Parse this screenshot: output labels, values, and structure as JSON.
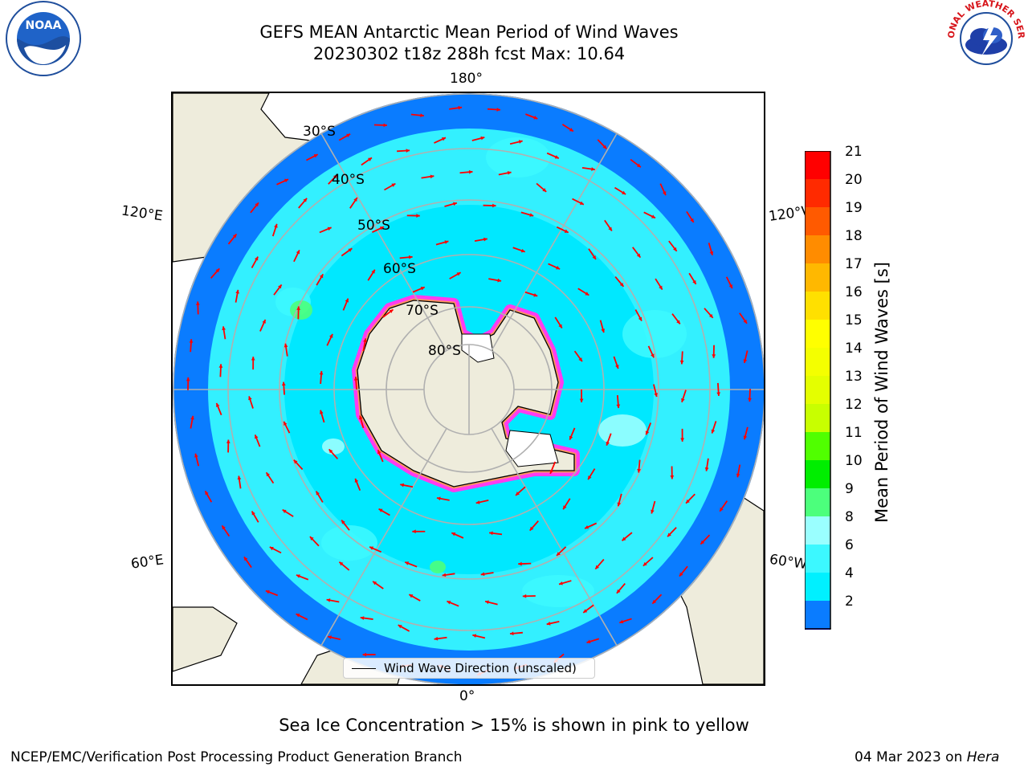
{
  "header": {
    "title_line1": "GEFS MEAN Antarctic Mean Period of Wind Waves",
    "title_line2": "20230302 t18z 288h fcst   Max: 10.64"
  },
  "map": {
    "projection": "south polar stereographic",
    "lon_labels": {
      "top": "180°",
      "bottom": "0°",
      "left_upper": "120°E",
      "left_lower": "60°E",
      "right_upper": "120°W",
      "right_lower": "60°W"
    },
    "lat_labels": [
      "30°S",
      "40°S",
      "50°S",
      "60°S",
      "70°S",
      "80°S"
    ],
    "colors": {
      "land": "#eeecdc",
      "ocean_long": "#0a7cff",
      "ocean_mid": "#33f0ff",
      "ocean_short": "#00e8ff",
      "ice": "#ff3cf0",
      "arrow": "#ff0000",
      "grid": "#b0b0b0"
    },
    "legend_label": "Wind Wave Direction (unscaled)"
  },
  "colorbar": {
    "label": "Mean Period of Wind Waves [s]",
    "ticks": [
      "2",
      "4",
      "6",
      "8",
      "9",
      "10",
      "11",
      "12",
      "13",
      "14",
      "15",
      "16",
      "17",
      "18",
      "19",
      "20",
      "21"
    ],
    "colors": [
      "#0a7cff",
      "#00f0ff",
      "#3cf8ff",
      "#9affff",
      "#4cff7c",
      "#00ee00",
      "#50ff00",
      "#c8ff00",
      "#e4ff00",
      "#f4ff00",
      "#ffff00",
      "#ffe000",
      "#ffb800",
      "#ff8c00",
      "#ff5a00",
      "#ff2a00",
      "#ff0000"
    ],
    "extend_color": "#0000ff"
  },
  "footer": {
    "note": "Sea Ice Concentration > 15% is shown in pink to yellow",
    "credit_left": "NCEP/EMC/Verification Post Processing Product Generation Branch",
    "date_prefix": "04 Mar 2023 on ",
    "date_host": "Hera"
  },
  "logos": {
    "noaa_text": "NOAA",
    "nws_text": "NATIONAL WEATHER SERVICE"
  }
}
